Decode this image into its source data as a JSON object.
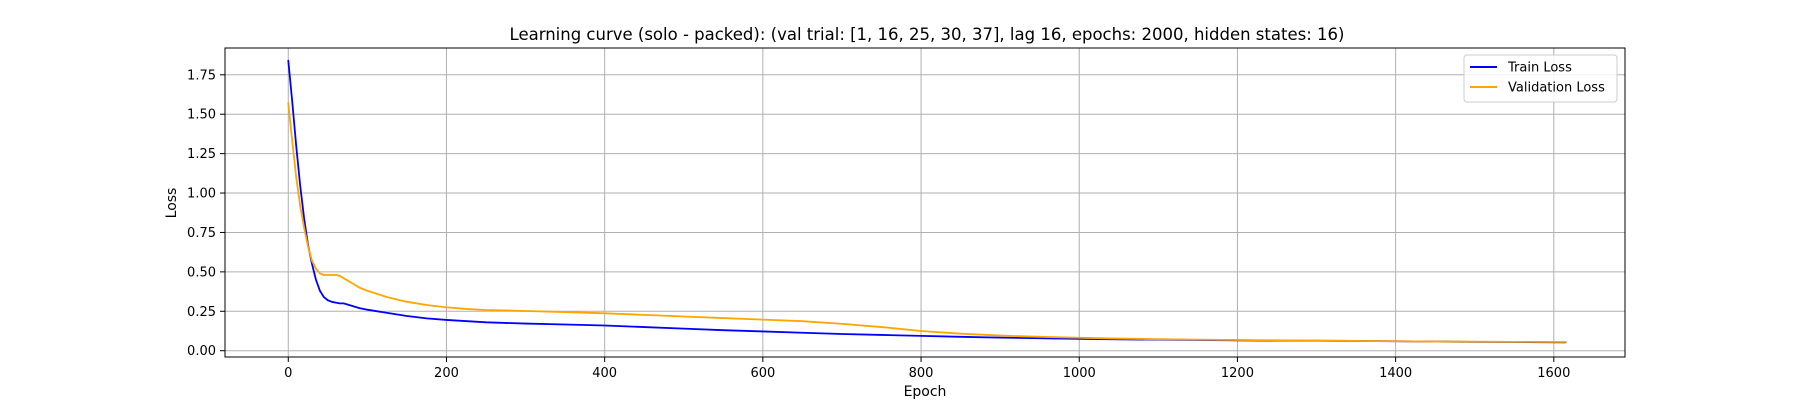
{
  "chart_data": {
    "type": "line",
    "title": "Learning curve (solo - packed): (val trial: [1, 16, 25, 30, 37], lag 16, epochs: 2000, hidden states: 16)",
    "xlabel": "Epoch",
    "ylabel": "Loss",
    "xlim": [
      -80,
      1690
    ],
    "ylim": [
      -0.04,
      1.92
    ],
    "xticks": [
      0,
      200,
      400,
      600,
      800,
      1000,
      1200,
      1400,
      1600
    ],
    "yticks": [
      0.0,
      0.25,
      0.5,
      0.75,
      1.0,
      1.25,
      1.5,
      1.75
    ],
    "xtick_labels": [
      "0",
      "200",
      "400",
      "600",
      "800",
      "1000",
      "1200",
      "1400",
      "1600"
    ],
    "ytick_labels": [
      "0.00",
      "0.25",
      "0.50",
      "0.75",
      "1.00",
      "1.25",
      "1.50",
      "1.75"
    ],
    "grid": true,
    "legend_position": "top-right",
    "series": [
      {
        "name": "Train Loss",
        "color": "#0000ff",
        "points": [
          [
            0,
            1.84
          ],
          [
            5,
            1.58
          ],
          [
            10,
            1.3
          ],
          [
            15,
            1.05
          ],
          [
            20,
            0.84
          ],
          [
            25,
            0.67
          ],
          [
            30,
            0.55
          ],
          [
            35,
            0.45
          ],
          [
            40,
            0.38
          ],
          [
            45,
            0.34
          ],
          [
            50,
            0.32
          ],
          [
            55,
            0.31
          ],
          [
            60,
            0.305
          ],
          [
            65,
            0.3
          ],
          [
            70,
            0.3
          ],
          [
            80,
            0.285
          ],
          [
            90,
            0.27
          ],
          [
            100,
            0.26
          ],
          [
            125,
            0.24
          ],
          [
            150,
            0.22
          ],
          [
            175,
            0.205
          ],
          [
            200,
            0.195
          ],
          [
            250,
            0.18
          ],
          [
            300,
            0.172
          ],
          [
            350,
            0.166
          ],
          [
            400,
            0.16
          ],
          [
            450,
            0.15
          ],
          [
            500,
            0.14
          ],
          [
            550,
            0.13
          ],
          [
            600,
            0.122
          ],
          [
            650,
            0.114
          ],
          [
            700,
            0.106
          ],
          [
            750,
            0.1
          ],
          [
            800,
            0.094
          ],
          [
            850,
            0.088
          ],
          [
            900,
            0.083
          ],
          [
            950,
            0.079
          ],
          [
            1000,
            0.075
          ],
          [
            1050,
            0.072
          ],
          [
            1100,
            0.07
          ],
          [
            1150,
            0.068
          ],
          [
            1200,
            0.066
          ],
          [
            1250,
            0.064
          ],
          [
            1300,
            0.063
          ],
          [
            1350,
            0.062
          ],
          [
            1400,
            0.06
          ],
          [
            1450,
            0.058
          ],
          [
            1500,
            0.056
          ],
          [
            1550,
            0.055
          ],
          [
            1615,
            0.053
          ]
        ]
      },
      {
        "name": "Validation Loss",
        "color": "#ffa500",
        "points": [
          [
            0,
            1.57
          ],
          [
            5,
            1.33
          ],
          [
            10,
            1.1
          ],
          [
            15,
            0.92
          ],
          [
            20,
            0.78
          ],
          [
            25,
            0.66
          ],
          [
            30,
            0.57
          ],
          [
            35,
            0.52
          ],
          [
            40,
            0.49
          ],
          [
            45,
            0.48
          ],
          [
            50,
            0.48
          ],
          [
            55,
            0.48
          ],
          [
            60,
            0.48
          ],
          [
            65,
            0.475
          ],
          [
            70,
            0.46
          ],
          [
            80,
            0.43
          ],
          [
            90,
            0.4
          ],
          [
            100,
            0.38
          ],
          [
            125,
            0.34
          ],
          [
            150,
            0.31
          ],
          [
            175,
            0.29
          ],
          [
            200,
            0.275
          ],
          [
            225,
            0.265
          ],
          [
            250,
            0.258
          ],
          [
            300,
            0.252
          ],
          [
            350,
            0.245
          ],
          [
            400,
            0.237
          ],
          [
            450,
            0.227
          ],
          [
            500,
            0.217
          ],
          [
            550,
            0.207
          ],
          [
            600,
            0.197
          ],
          [
            650,
            0.187
          ],
          [
            700,
            0.17
          ],
          [
            750,
            0.15
          ],
          [
            800,
            0.125
          ],
          [
            850,
            0.108
          ],
          [
            900,
            0.096
          ],
          [
            950,
            0.088
          ],
          [
            1000,
            0.082
          ],
          [
            1050,
            0.077
          ],
          [
            1100,
            0.073
          ],
          [
            1150,
            0.07
          ],
          [
            1200,
            0.068
          ],
          [
            1250,
            0.066
          ],
          [
            1300,
            0.064
          ],
          [
            1350,
            0.062
          ],
          [
            1400,
            0.06
          ],
          [
            1450,
            0.058
          ],
          [
            1500,
            0.057
          ],
          [
            1550,
            0.056
          ],
          [
            1615,
            0.055
          ]
        ]
      }
    ]
  }
}
